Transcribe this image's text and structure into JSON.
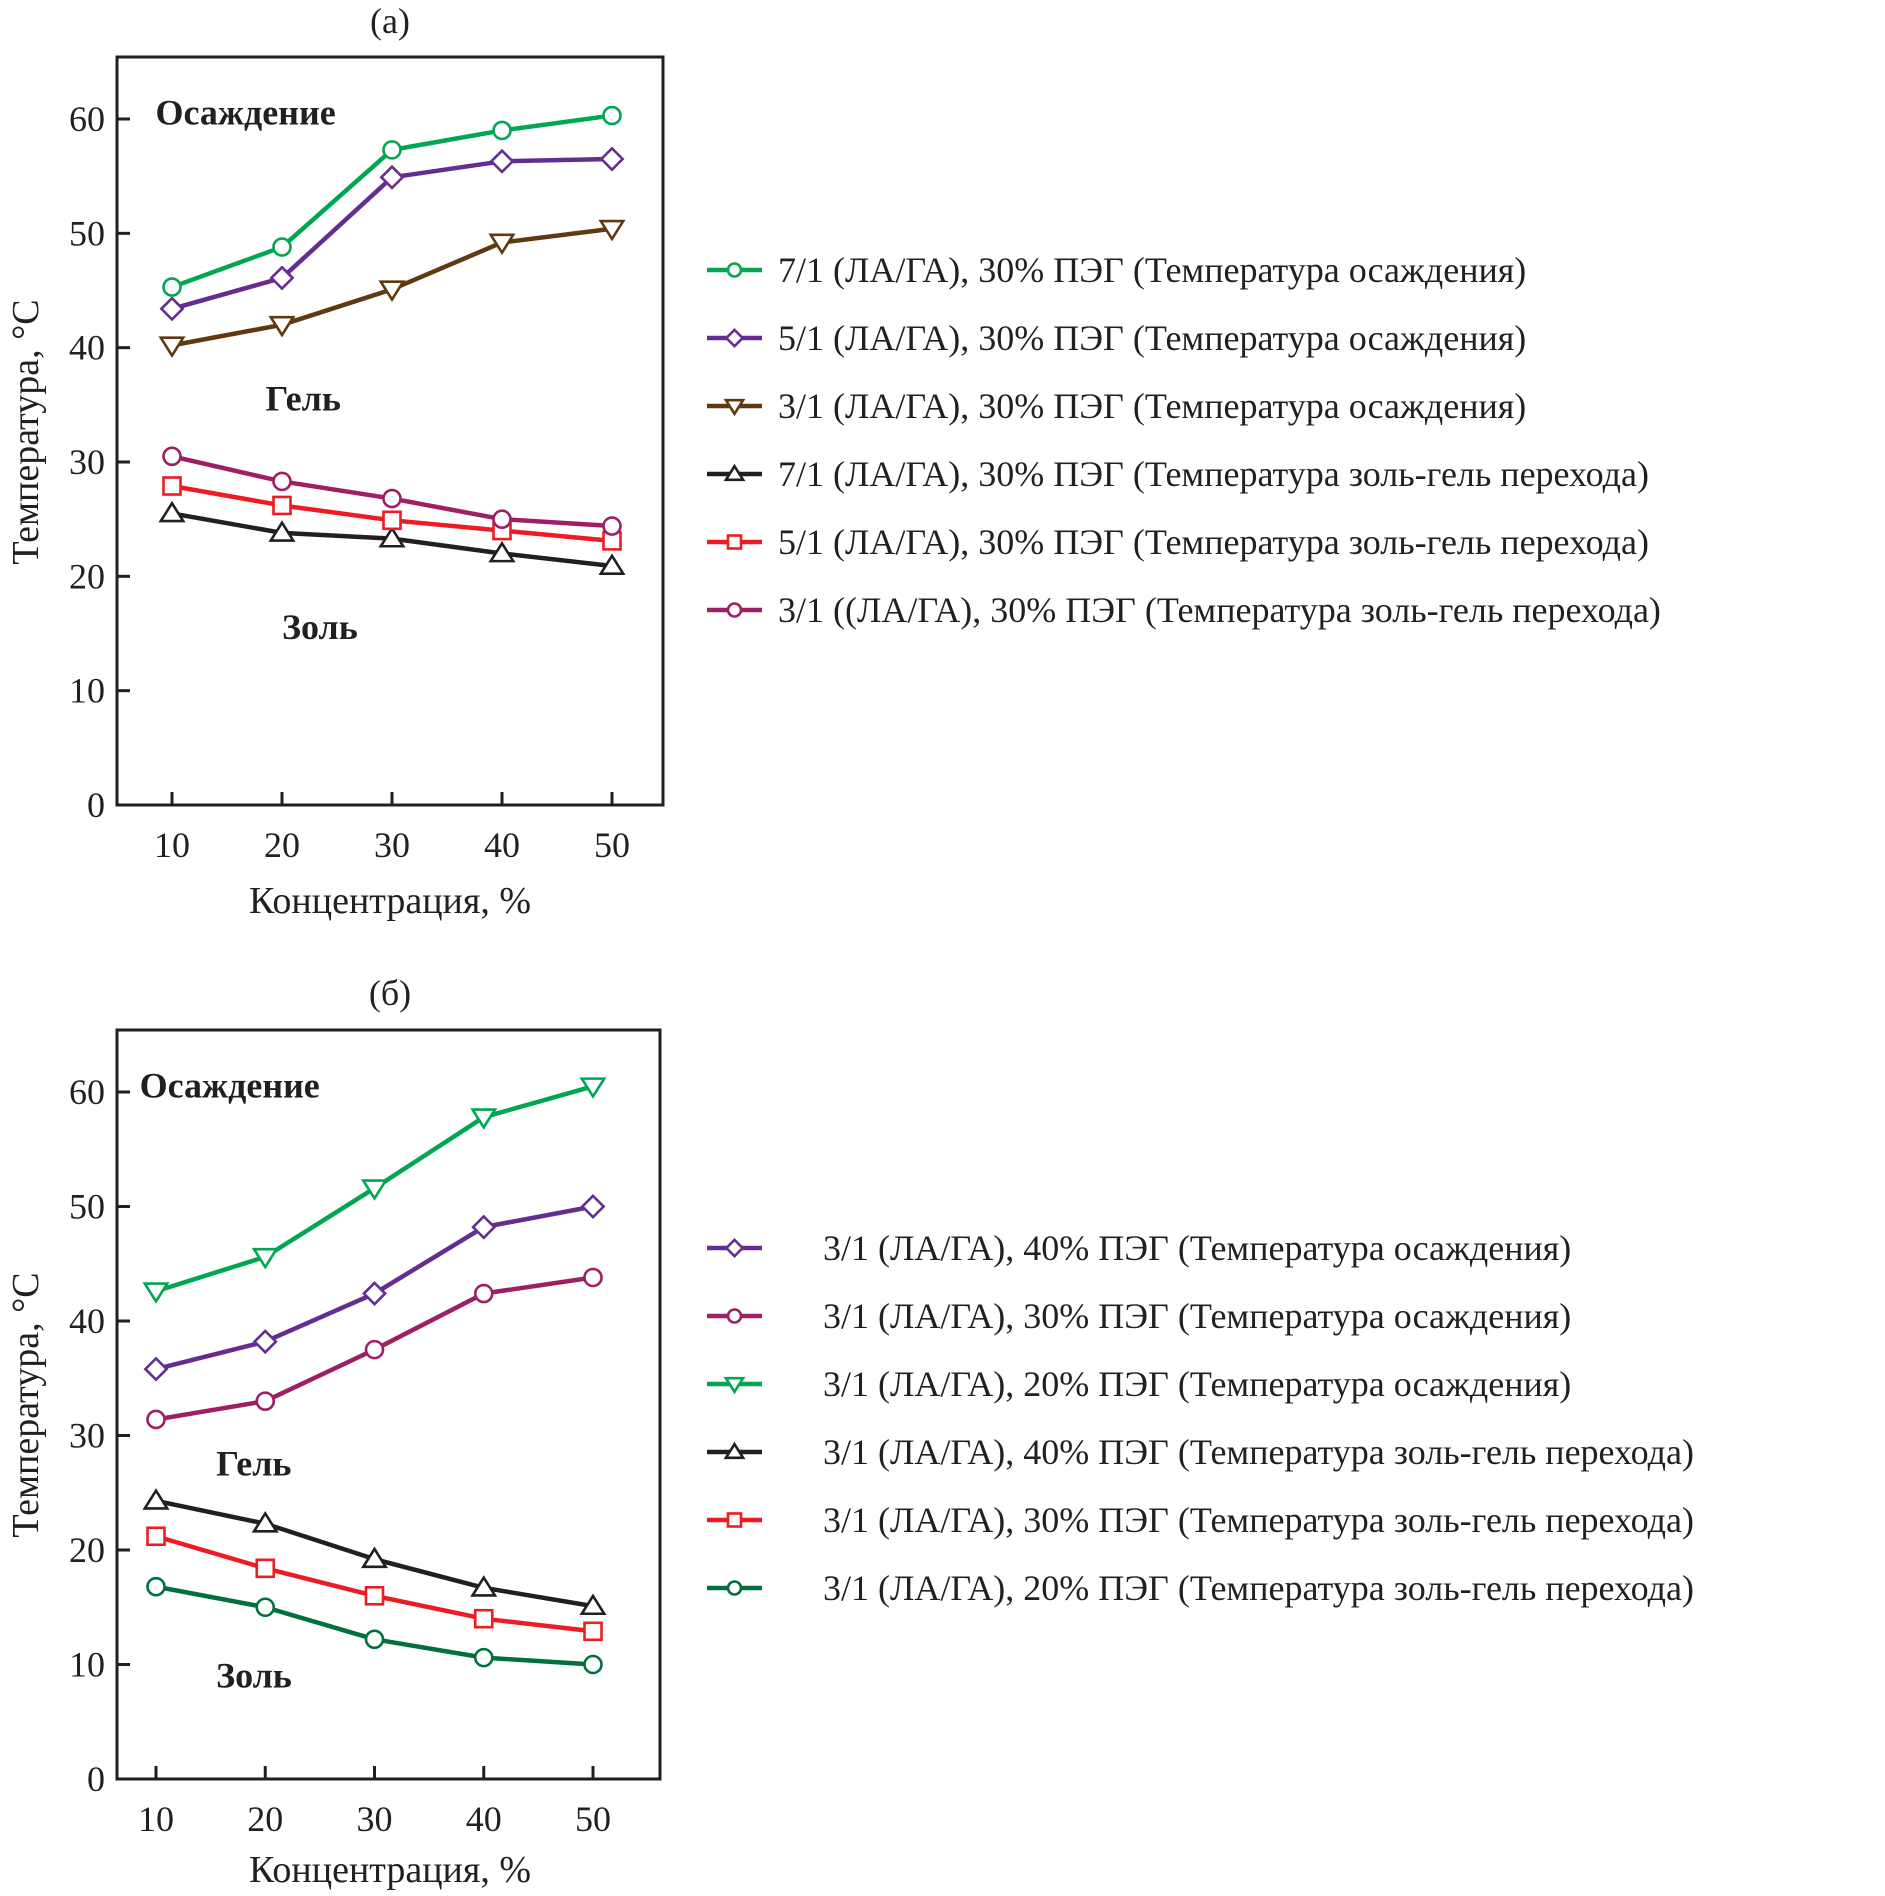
{
  "chart_data": [
    {
      "type": "line",
      "panel_title": "(a)",
      "xlabel": "Концентрация, %",
      "ylabel": "Температура, °C",
      "x": [
        10,
        20,
        30,
        40,
        50
      ],
      "xticks": [
        10,
        20,
        30,
        40,
        50
      ],
      "xlim": [
        5,
        55
      ],
      "yticks": [
        0,
        10,
        20,
        30,
        40,
        50,
        60
      ],
      "ylim": [
        0,
        65
      ],
      "grid": false,
      "legend_position": "right",
      "region_labels": [
        {
          "text": "Осаждение",
          "x": 8.5,
          "y": 59.5
        },
        {
          "text": "Гель",
          "x": 18.5,
          "y": 34.5
        },
        {
          "text": "Золь",
          "x": 20,
          "y": 14.5
        }
      ],
      "series": [
        {
          "name": "7/1 (ЛА/ГА), 30% ПЭГ (Температура осаждения)",
          "color": "#00a651",
          "marker": "circle",
          "values": [
            45.3,
            48.8,
            57.3,
            59.0,
            60.3
          ]
        },
        {
          "name": "5/1 (ЛА/ГА), 30% ПЭГ (Температура осаждения)",
          "color": "#662d91",
          "marker": "diamond",
          "values": [
            43.4,
            46.1,
            54.9,
            56.3,
            56.5
          ]
        },
        {
          "name": "3/1 (ЛА/ГА), 30% ПЭГ (Температура осаждения)",
          "color": "#603913",
          "marker": "triangle-down",
          "values": [
            40.2,
            42.0,
            45.1,
            49.2,
            50.4
          ]
        },
        {
          "name": "7/1 (ЛА/ГА), 30% ПЭГ (Температура золь-гель перехода)",
          "color": "#231f20",
          "marker": "triangle-up",
          "values": [
            25.5,
            23.8,
            23.3,
            22.0,
            20.9
          ]
        },
        {
          "name": "5/1 (ЛА/ГА), 30% ПЭГ (Температура золь-гель перехода)",
          "color": "#ed1c24",
          "marker": "square",
          "values": [
            27.9,
            26.2,
            24.9,
            24.0,
            23.1
          ]
        },
        {
          "name": "3/1 ((ЛА/ГА), 30% ПЭГ (Температура золь-гель перехода)",
          "color": "#9e1f63",
          "marker": "circle",
          "values": [
            30.5,
            28.3,
            26.8,
            25.0,
            24.4
          ]
        }
      ]
    },
    {
      "type": "line",
      "panel_title": "(б)",
      "xlabel": "Концентрация, %",
      "ylabel": "Температура, °C",
      "x": [
        10,
        20,
        30,
        40,
        50
      ],
      "xticks": [
        10,
        20,
        30,
        40,
        50
      ],
      "xlim": [
        4.5,
        56
      ],
      "yticks": [
        0,
        10,
        20,
        30,
        40,
        50,
        60
      ],
      "ylim": [
        0,
        65
      ],
      "grid": false,
      "legend_position": "right",
      "region_labels": [
        {
          "text": "Осаждение",
          "x": 8.5,
          "y": 59.5
        },
        {
          "text": "Гель",
          "x": 15.5,
          "y": 26.5
        },
        {
          "text": "Золь",
          "x": 15.5,
          "y": 8.0
        }
      ],
      "series": [
        {
          "name": "3/1 (ЛА/ГА), 40% ПЭГ (Температура осаждения)",
          "color": "#662d91",
          "marker": "diamond",
          "values": [
            35.8,
            38.2,
            42.4,
            48.2,
            50.0
          ]
        },
        {
          "name": "3/1 (ЛА/ГА), 30% ПЭГ (Температура осаждения)",
          "color": "#9e1f63",
          "marker": "circle",
          "values": [
            31.4,
            33.0,
            37.5,
            42.4,
            43.8
          ]
        },
        {
          "name": "3/1 (ЛА/ГА), 20% ПЭГ (Температура осаждения)",
          "color": "#00a651",
          "marker": "triangle-down",
          "values": [
            42.6,
            45.6,
            51.6,
            57.8,
            60.5
          ]
        },
        {
          "name": "3/1 (ЛА/ГА), 40% ПЭГ (Температура золь-гель перехода)",
          "color": "#231f20",
          "marker": "triangle-up",
          "values": [
            24.3,
            22.3,
            19.2,
            16.7,
            15.1
          ]
        },
        {
          "name": "3/1 (ЛА/ГА), 30% ПЭГ (Температура золь-гель перехода)",
          "color": "#ed1c24",
          "marker": "square",
          "values": [
            21.2,
            18.4,
            16.0,
            14.0,
            12.9
          ]
        },
        {
          "name": "3/1 (ЛА/ГА), 20% ПЭГ (Температура золь-гель перехода)",
          "color": "#00703c",
          "marker": "circle",
          "values": [
            16.8,
            15.0,
            12.2,
            10.6,
            10.0
          ]
        }
      ]
    }
  ]
}
